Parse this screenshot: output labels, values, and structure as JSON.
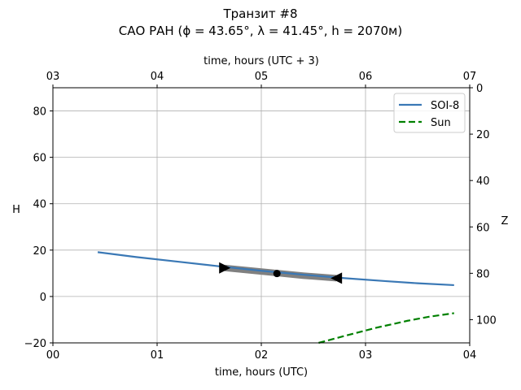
{
  "chart_data": {
    "type": "line",
    "title_line1": "Транзит #8",
    "title_line2": "САО РАН (ϕ = 43.65°, λ = 41.45°, h = 2070м)",
    "xlabel_bottom": "time, hours (UTC)",
    "xlabel_top": "time, hours (UTC + 3)",
    "ylabel_left": "H",
    "ylabel_right": "Z",
    "xlim": [
      0,
      4
    ],
    "ylim": [
      -20,
      90
    ],
    "bottom_ticks": [
      {
        "value": 0,
        "label": "00"
      },
      {
        "value": 1,
        "label": "01"
      },
      {
        "value": 2,
        "label": "02"
      },
      {
        "value": 3,
        "label": "03"
      },
      {
        "value": 4,
        "label": "04"
      }
    ],
    "top_ticks": [
      {
        "value": 0,
        "label": "03"
      },
      {
        "value": 1,
        "label": "04"
      },
      {
        "value": 2,
        "label": "05"
      },
      {
        "value": 3,
        "label": "06"
      },
      {
        "value": 4,
        "label": "07"
      }
    ],
    "left_ticks": [
      {
        "value": -20,
        "label": "−20"
      },
      {
        "value": 0,
        "label": "0"
      },
      {
        "value": 20,
        "label": "20"
      },
      {
        "value": 40,
        "label": "40"
      },
      {
        "value": 60,
        "label": "60"
      },
      {
        "value": 80,
        "label": "80"
      }
    ],
    "right_ticks": [
      {
        "value": 90,
        "label": "0"
      },
      {
        "value": 70,
        "label": "20"
      },
      {
        "value": 50,
        "label": "40"
      },
      {
        "value": 30,
        "label": "60"
      },
      {
        "value": 10,
        "label": "80"
      },
      {
        "value": -10,
        "label": "100"
      }
    ],
    "grid": true,
    "legend_position": "top-right",
    "series": [
      {
        "name": "SOI-8",
        "color": "#3a78b5",
        "style": "solid",
        "points": [
          [
            0.43,
            19.1
          ],
          [
            0.8,
            17.0
          ],
          [
            1.2,
            15.0
          ],
          [
            1.6,
            13.0
          ],
          [
            2.0,
            11.1
          ],
          [
            2.4,
            9.4
          ],
          [
            2.8,
            7.9
          ],
          [
            3.2,
            6.6
          ],
          [
            3.5,
            5.7
          ],
          [
            3.85,
            4.9
          ]
        ]
      },
      {
        "name": "Sun",
        "color": "#008000",
        "style": "dashed",
        "points": [
          [
            2.55,
            -20.0
          ],
          [
            2.8,
            -17.0
          ],
          [
            3.1,
            -13.5
          ],
          [
            3.4,
            -10.5
          ],
          [
            3.6,
            -8.8
          ],
          [
            3.85,
            -7.2
          ]
        ]
      }
    ],
    "highlight_segment": {
      "color": "#808080",
      "points": [
        [
          1.65,
          12.3
        ],
        [
          1.9,
          11.2
        ],
        [
          2.15,
          10.1
        ],
        [
          2.4,
          9.0
        ],
        [
          2.72,
          7.9
        ]
      ]
    },
    "markers": [
      {
        "type": "triangle-right",
        "x": 1.65,
        "y": 12.3,
        "color": "#000000"
      },
      {
        "type": "circle",
        "x": 2.15,
        "y": 9.9,
        "color": "#000000"
      },
      {
        "type": "triangle-left",
        "x": 2.72,
        "y": 7.9,
        "color": "#000000"
      }
    ]
  }
}
